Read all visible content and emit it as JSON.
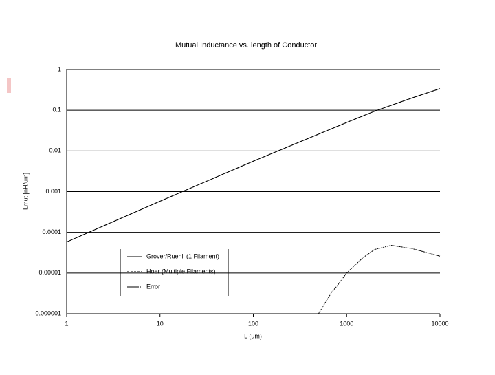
{
  "chart_data": {
    "type": "line",
    "title": "Mutual Inductance vs. length of Conductor",
    "x_label": "L (um)",
    "y_label": "Lmut [nH/um]",
    "xscale": "log",
    "yscale": "log",
    "grid": true,
    "xlim": [
      1,
      10000
    ],
    "xticks": [
      1,
      10,
      100,
      1000,
      10000
    ],
    "ylim": [
      1e-06,
      1
    ],
    "yticks": [
      1,
      0.1,
      0.01,
      0.001,
      0.0001,
      1e-05,
      1e-06
    ],
    "series": [
      {
        "name": "Grover/Ruehli (1 Filament)",
        "color": "#000000",
        "dash": "none",
        "x": [
          1,
          10,
          100,
          1000,
          2000,
          5000,
          10000
        ],
        "values": [
          5.8e-05,
          0.00058,
          0.0056,
          0.05,
          0.095,
          0.2,
          0.34
        ]
      },
      {
        "name": "Hoer (Multiple Filaments)",
        "color": "#000000",
        "dash": "3,2",
        "x": [
          1,
          10,
          100,
          1000,
          2000,
          5000,
          10000
        ],
        "values": [
          5.8e-05,
          0.00058,
          0.0056,
          0.05,
          0.095,
          0.2,
          0.34
        ]
      },
      {
        "name": "Error",
        "color": "#000000",
        "dash": "2,1",
        "x": [
          500,
          600,
          700,
          800,
          1000,
          1500,
          2000,
          3000,
          5000,
          10000
        ],
        "values": [
          1e-06,
          2e-06,
          3.5e-06,
          5e-06,
          1e-05,
          2.4e-05,
          3.8e-05,
          4.8e-05,
          4e-05,
          2.6e-05
        ]
      }
    ]
  }
}
